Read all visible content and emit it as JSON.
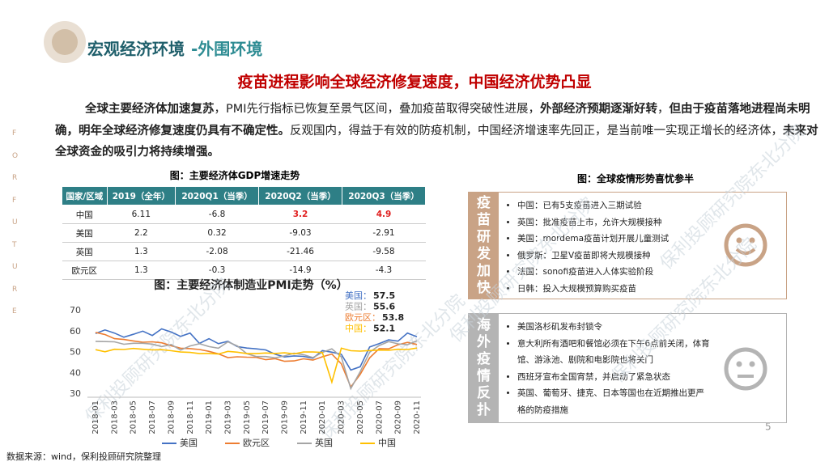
{
  "header": {
    "title_main": "宏观经济环境",
    "title_sub": "-外围环境"
  },
  "headline": "疫苗进程影响全球经济修复速度，中国经济优势凸显",
  "paragraph": [
    {
      "text": "全球主要经济体加速复苏",
      "bold": true
    },
    {
      "text": "，PMI先行指标已恢复至景气区间，叠加疫苗取得突破性进展，",
      "bold": false
    },
    {
      "text": "外部经济预期逐渐好转",
      "bold": true
    },
    {
      "text": "，",
      "bold": false
    },
    {
      "text": "但由于疫苗落地进程尚未明确，明年全球经济修复速度仍具有不确定性。",
      "bold": true
    },
    {
      "text": "反观国内，得益于有效的防疫机制，中国经济增速率先回正，是当前唯一实现正增长的经济体，",
      "bold": false
    },
    {
      "text": "未来对全球资金的吸引力将持续增强。",
      "bold": true
    }
  ],
  "side_letters": [
    "F",
    "O",
    "R",
    "F",
    "U",
    "T",
    "U",
    "R",
    "E"
  ],
  "table": {
    "title": "图：主要经济体GDP增速走势",
    "columns": [
      "国家/区域",
      "2019（全年）",
      "2020Q1（当季）",
      "2020Q2（当季）",
      "2020Q3（当季）"
    ],
    "rows": [
      [
        "中国",
        6.11,
        -6.8,
        3.2,
        4.9
      ],
      [
        "美国",
        2.2,
        0.32,
        -9.03,
        -2.91
      ],
      [
        "英国",
        1.3,
        -2.08,
        -21.46,
        -9.58
      ],
      [
        "欧元区",
        1.3,
        -0.3,
        -14.9,
        -4.3
      ]
    ],
    "highlight_cells": [
      [
        0,
        3
      ],
      [
        0,
        4
      ]
    ],
    "highlight_color": "#e02020"
  },
  "chart_data": {
    "type": "line",
    "title": "图：主要经济体制造业PMI走势（%）",
    "categories": [
      "2018-01",
      null,
      "2018-03",
      null,
      "2018-05",
      null,
      "2018-07",
      null,
      "2018-09",
      null,
      "2018-11",
      null,
      "2019-01",
      null,
      "2019-03",
      null,
      "2019-05",
      null,
      "2019-07",
      null,
      "2019-09",
      null,
      "2019-11",
      null,
      "2020-01",
      null,
      "2020-03",
      null,
      "2020-05",
      null,
      "2020-07",
      null,
      "2020-09",
      null,
      "2020-11"
    ],
    "series": [
      {
        "name": "美国",
        "color": "#4472c4",
        "values": [
          59.1,
          60.8,
          59.3,
          57.3,
          58.7,
          60.2,
          58.1,
          61.3,
          59.8,
          57.7,
          59.3,
          54.3,
          56.6,
          54.2,
          55.3,
          52.8,
          52.1,
          51.7,
          51.2,
          49.1,
          47.8,
          48.3,
          48.1,
          47.2,
          50.9,
          50.1,
          49.1,
          41.5,
          43.1,
          52.6,
          54.2,
          56.0,
          55.4,
          59.3,
          57.5
        ]
      },
      {
        "name": "欧元区",
        "color": "#ed7d31",
        "values": [
          59.6,
          58.6,
          56.6,
          56.2,
          55.5,
          54.9,
          55.1,
          54.6,
          53.2,
          52.0,
          51.8,
          51.4,
          50.5,
          49.3,
          47.5,
          47.9,
          47.7,
          47.6,
          46.5,
          47.0,
          45.7,
          45.9,
          46.9,
          46.3,
          47.9,
          49.2,
          44.5,
          33.4,
          39.4,
          47.4,
          51.8,
          51.7,
          53.7,
          54.8,
          53.8
        ]
      },
      {
        "name": "英国",
        "color": "#a5a5a5",
        "values": [
          55.3,
          55.2,
          55.1,
          53.9,
          54.4,
          54.4,
          54.0,
          52.8,
          53.8,
          51.1,
          53.1,
          54.2,
          52.8,
          52.0,
          55.1,
          53.1,
          49.4,
          48.0,
          48.0,
          47.4,
          48.3,
          49.6,
          48.9,
          47.5,
          50.0,
          51.7,
          47.8,
          32.6,
          40.7,
          50.1,
          53.3,
          55.2,
          54.1,
          53.7,
          55.6
        ]
      },
      {
        "name": "中国",
        "color": "#ffc000",
        "values": [
          51.3,
          50.3,
          51.5,
          51.4,
          51.9,
          51.5,
          51.2,
          51.3,
          50.8,
          50.2,
          50.0,
          49.4,
          49.5,
          49.2,
          50.5,
          50.1,
          49.4,
          49.4,
          49.7,
          49.5,
          49.8,
          49.3,
          50.2,
          50.2,
          50.0,
          35.7,
          52.0,
          50.8,
          50.6,
          50.9,
          51.1,
          51.0,
          51.5,
          51.4,
          52.1
        ]
      }
    ],
    "ylim": [
      30,
      72
    ],
    "yticks": [
      30,
      40,
      50,
      60,
      70
    ],
    "grid": false,
    "legend": "bottom",
    "annotations": [
      {
        "label": "美国：",
        "value": 57.5,
        "color": "#4472c4"
      },
      {
        "label": "英国：",
        "value": 55.6,
        "color": "#a5a5a5"
      },
      {
        "label": "欧元区：",
        "value": 53.8,
        "color": "#ed7d31"
      },
      {
        "label": "中国：",
        "value": 52.1,
        "color": "#ffc000"
      }
    ]
  },
  "epidemic": {
    "title": "图：全球疫情形势喜忧参半",
    "panels": [
      {
        "label": "疫苗研发加快",
        "color": "#c9a386",
        "items": [
          "中国：已有5支疫苗进入三期试验",
          "英国：批准疫苗上市，允许大规模接种",
          "美国：mordema疫苗计划开展儿童测试",
          "俄罗斯：卫星V疫苗即将大规模接种",
          "法国：sonofi疫苗进入人体实验阶段",
          "日韩：投入大规模预算购买疫苗"
        ]
      },
      {
        "label": "海外疫情反扑",
        "color": "#b4b4b4",
        "items": [
          "美国洛杉矶发布封锁令",
          "意大利所有酒吧和餐馆必须在下午6点前关闭，体育馆、游泳池、剧院和电影院也将关门",
          "西班牙宣布全国宵禁，并启动了紧急状态",
          "英国、葡萄牙、捷克、日本等国也在近期推出更严格的防疫措施"
        ]
      }
    ]
  },
  "page_number": 5,
  "source": "数据来源：wind，保利投顾研究院整理",
  "watermark": "保利投顾研究院东北分院"
}
